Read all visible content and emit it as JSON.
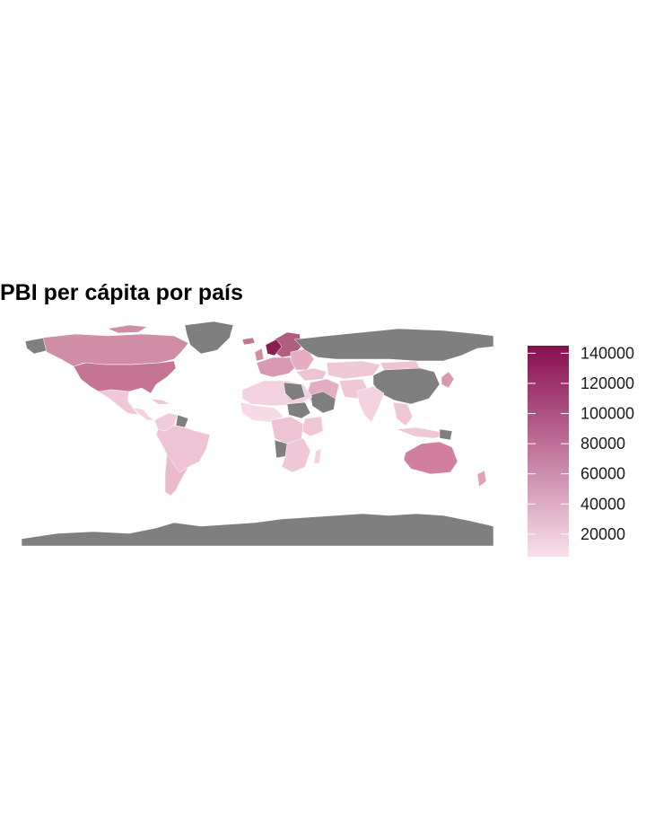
{
  "title": "PBI per cápita por país",
  "legend": {
    "ticks": [
      {
        "label": "140000",
        "value": 140000
      },
      {
        "label": "120000",
        "value": 120000
      },
      {
        "label": "100000",
        "value": 100000
      },
      {
        "label": "80000",
        "value": 80000
      },
      {
        "label": "60000",
        "value": 60000
      },
      {
        "label": "40000",
        "value": 40000
      },
      {
        "label": "20000",
        "value": 20000
      }
    ],
    "range": [
      5000,
      145000
    ],
    "color_low": "#f9e1eb",
    "color_high": "#880e4f"
  },
  "colors": {
    "missing": "#7f7f7f",
    "border": "#ffffff",
    "background": "#ffffff"
  }
}
